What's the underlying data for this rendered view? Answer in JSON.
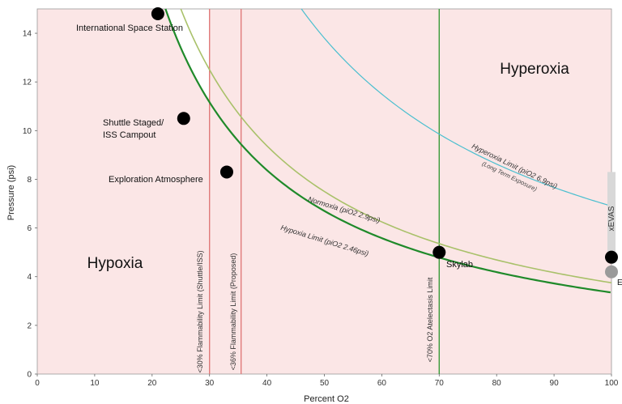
{
  "chart_data": {
    "type": "line",
    "xlabel": "Percent O2",
    "ylabel": "Pressure (psi)",
    "xlim": [
      0,
      100
    ],
    "ylim": [
      0,
      15
    ],
    "xticks": [
      0,
      10,
      20,
      30,
      40,
      50,
      60,
      70,
      80,
      90,
      100
    ],
    "yticks": [
      0,
      2,
      4,
      6,
      8,
      10,
      12,
      14
    ],
    "regions": [
      {
        "label": "Hypoxia",
        "color": "#fbe6e6"
      },
      {
        "label": "Hyperoxia",
        "color": "#fbe6e6"
      }
    ],
    "series": [
      {
        "name": "Hypoxia Limit (piO2 2.46psi)",
        "color": "#1f8a2a",
        "ppo2": 3.35
      },
      {
        "name": "Normoxia (piO2 2.9psi)",
        "color": "#a9c16a",
        "ppo2": 3.75
      },
      {
        "name": "Hyperoxia Limit (piO2 6.9psi)",
        "sublabel": "(Long Term Exposure)",
        "color": "#4bbfcf",
        "ppo2": 6.9
      }
    ],
    "vlines": [
      {
        "x": 30,
        "label": "<30% Flammability Limit (Shuttle/ISS)",
        "color": "#e07a7a"
      },
      {
        "x": 35.5,
        "label": "<36% Flammability Limit (Proposed)",
        "color": "#e07a7a"
      },
      {
        "x": 70,
        "label": "<70% O2 Atelectasis Limit",
        "color": "#3a9a3a"
      }
    ],
    "points": [
      {
        "label": "International Space Station",
        "x": 21,
        "y": 14.8
      },
      {
        "label": "Shuttle Staged/",
        "label2": "ISS Campout",
        "x": 25.5,
        "y": 10.5
      },
      {
        "label": "Exploration Atmosphere",
        "x": 33,
        "y": 8.3
      },
      {
        "label": "Skylab",
        "x": 70,
        "y": 5.0
      },
      {
        "label": "",
        "x": 100,
        "y": 4.8
      },
      {
        "label": "E",
        "x": 100,
        "y": 4.2,
        "color": "#9a9a9a"
      }
    ],
    "band": {
      "label": "xEVAS",
      "x": 100,
      "y0": 4.9,
      "y1": 8.3
    }
  }
}
